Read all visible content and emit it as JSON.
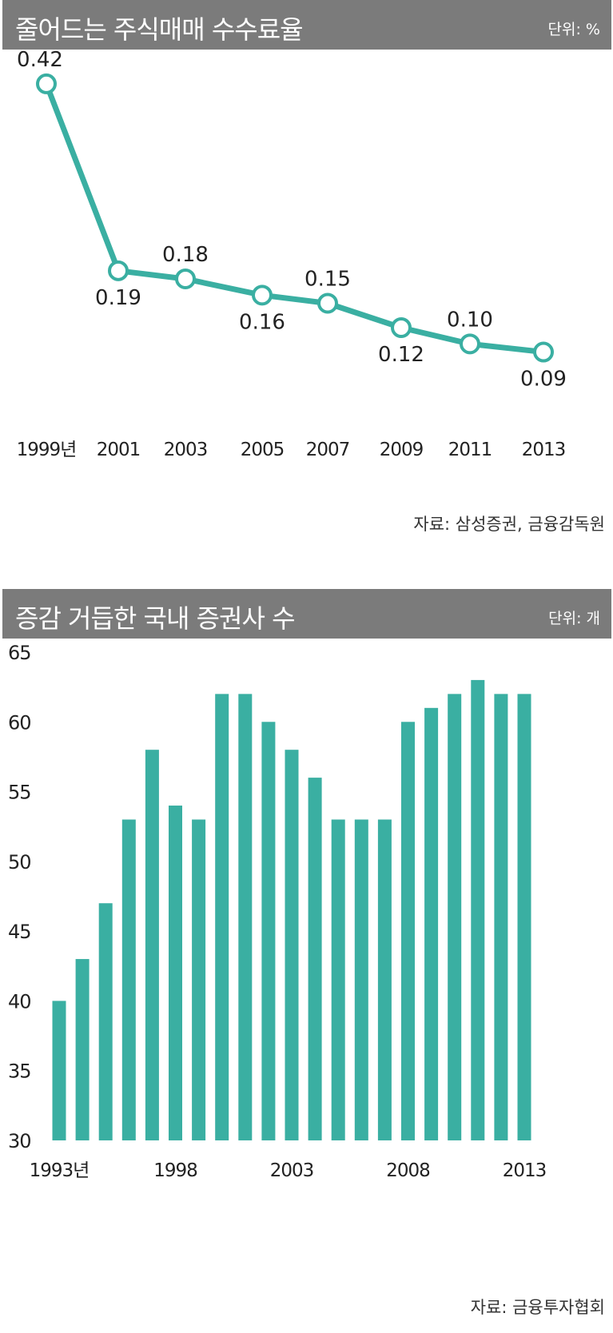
{
  "colors": {
    "accent": "#3aafa2",
    "header_bg": "#7b7b7b",
    "header_text": "#ffffff"
  },
  "chart1": {
    "header_title": "줄어드는 주식매매 수수료율",
    "unit": "단위: %",
    "source": "자료: 삼성증권, 금융감독원"
  },
  "chart2": {
    "header_title": "증감 거듭한 국내 증권사 수",
    "unit": "단위: 개",
    "source": "자료: 금융투자협회"
  },
  "chart_data": [
    {
      "type": "line",
      "title": "줄어드는 주식매매 수수료율",
      "unit": "단위: %",
      "x": [
        "1999년",
        "2001",
        "2003",
        "2005",
        "2007",
        "2009",
        "2011",
        "2013"
      ],
      "values": [
        0.42,
        0.19,
        0.18,
        0.16,
        0.15,
        0.12,
        0.1,
        0.09
      ],
      "labels": [
        "0.42",
        "0.19",
        "0.18",
        "0.16",
        "0.15",
        "0.12",
        "0.10",
        "0.09"
      ],
      "ylim": [
        0.05,
        0.45
      ],
      "grid": false,
      "source": "자료: 삼성증권, 금융감독원"
    },
    {
      "type": "bar",
      "title": "증감 거듭한 국내 증권사 수",
      "unit": "단위: 개",
      "categories": [
        1993,
        1994,
        1995,
        1996,
        1997,
        1998,
        1999,
        2000,
        2001,
        2002,
        2003,
        2004,
        2005,
        2006,
        2007,
        2008,
        2009,
        2010,
        2011,
        2012,
        2013
      ],
      "values": [
        40,
        43,
        47,
        53,
        58,
        54,
        53,
        62,
        62,
        60,
        58,
        56,
        53,
        53,
        53,
        60,
        61,
        62,
        63,
        62,
        62
      ],
      "x_tick_labels": [
        {
          "year": 1993,
          "label": "1993년"
        },
        {
          "year": 1998,
          "label": "1998"
        },
        {
          "year": 2003,
          "label": "2003"
        },
        {
          "year": 2008,
          "label": "2008"
        },
        {
          "year": 2013,
          "label": "2013"
        }
      ],
      "yticks": [
        30,
        35,
        40,
        45,
        50,
        55,
        60,
        65
      ],
      "ylim": [
        30,
        65
      ],
      "grid": false,
      "source": "자료: 금융투자협회"
    }
  ]
}
